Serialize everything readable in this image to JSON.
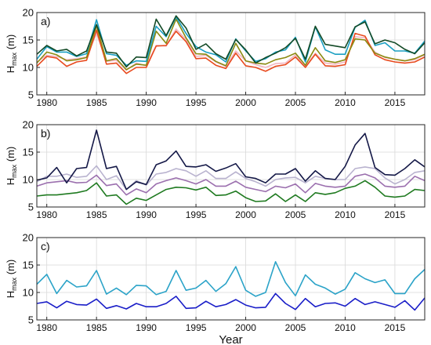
{
  "chart_data": [
    {
      "type": "line",
      "panel_label": "a)",
      "ylabel": "H",
      "ylabel_sub": "max",
      "ylabel_unit": " (m)",
      "xlabel": "",
      "xlim": [
        1979,
        2018
      ],
      "ylim": [
        5,
        20
      ],
      "yticks": [
        5,
        10,
        15,
        20
      ],
      "xticks": [
        1980,
        1985,
        1990,
        1995,
        2000,
        2005,
        2010,
        2015
      ],
      "grid": true,
      "x": [
        1979,
        1980,
        1981,
        1982,
        1983,
        1984,
        1985,
        1986,
        1987,
        1988,
        1989,
        1990,
        1991,
        1992,
        1993,
        1994,
        1995,
        1996,
        1997,
        1998,
        1999,
        2000,
        2001,
        2002,
        2003,
        2004,
        2005,
        2006,
        2007,
        2008,
        2009,
        2010,
        2011,
        2012,
        2013,
        2014,
        2015,
        2016,
        2017,
        2018
      ],
      "series": [
        {
          "color": "#f2b6c2",
          "values": [
            11.0,
            12.2,
            12.0,
            11.4,
            11.6,
            11.9,
            16.2,
            11.1,
            11.3,
            9.5,
            10.8,
            10.3,
            14.0,
            13.9,
            17.0,
            15.1,
            12.0,
            12.2,
            11.0,
            10.2,
            13.0,
            11.2,
            10.5,
            10.0,
            10.7,
            10.8,
            12.3,
            10.2,
            12.6,
            10.8,
            10.6,
            11.0,
            15.6,
            15.4,
            12.8,
            11.8,
            11.5,
            11.2,
            11.4,
            12.3
          ]
        },
        {
          "color": "#e84a1e",
          "values": [
            10.2,
            12.0,
            11.7,
            10.2,
            11.0,
            11.3,
            16.8,
            10.6,
            10.8,
            8.9,
            10.0,
            10.0,
            13.9,
            14.0,
            16.6,
            14.7,
            11.6,
            11.7,
            10.4,
            9.8,
            12.6,
            10.3,
            10.0,
            9.3,
            10.2,
            10.5,
            11.9,
            10.0,
            12.4,
            10.3,
            10.2,
            10.5,
            16.2,
            15.7,
            12.3,
            11.4,
            11.0,
            10.8,
            11.0,
            11.9
          ]
        },
        {
          "color": "#8a8a10",
          "values": [
            10.8,
            12.8,
            12.3,
            11.2,
            11.4,
            11.8,
            17.6,
            11.2,
            11.6,
            9.6,
            10.6,
            10.4,
            16.6,
            14.4,
            18.8,
            15.4,
            12.5,
            12.4,
            11.1,
            10.3,
            14.4,
            11.2,
            10.8,
            10.6,
            11.4,
            11.8,
            12.6,
            10.4,
            13.6,
            11.2,
            10.9,
            11.4,
            15.2,
            15.0,
            12.6,
            11.9,
            11.5,
            11.2,
            11.6,
            12.4
          ]
        },
        {
          "color": "#1a9fc2",
          "values": [
            11.5,
            13.8,
            12.8,
            12.8,
            12.0,
            12.5,
            18.7,
            12.5,
            12.2,
            10.4,
            11.2,
            11.1,
            17.5,
            15.6,
            19.2,
            16.2,
            13.8,
            12.8,
            12.3,
            11.0,
            15.2,
            13.0,
            11.1,
            11.6,
            12.8,
            13.2,
            15.5,
            11.0,
            17.4,
            13.2,
            12.4,
            12.4,
            17.3,
            18.6,
            14.0,
            14.5,
            13.0,
            13.0,
            12.6,
            14.8
          ]
        },
        {
          "color": "#134a26",
          "values": [
            12.4,
            14.0,
            13.0,
            13.3,
            12.1,
            13.0,
            17.8,
            12.8,
            12.6,
            10.1,
            11.9,
            11.8,
            18.8,
            15.8,
            19.4,
            17.2,
            13.3,
            14.3,
            12.5,
            11.5,
            15.1,
            13.2,
            10.8,
            11.8,
            12.6,
            13.6,
            15.3,
            11.5,
            17.5,
            14.2,
            13.9,
            13.6,
            17.4,
            18.3,
            14.3,
            15.0,
            14.5,
            13.3,
            12.5,
            14.5
          ]
        }
      ]
    },
    {
      "type": "line",
      "panel_label": "b)",
      "ylabel": "H",
      "ylabel_sub": "max",
      "ylabel_unit": " (m)",
      "xlabel": "",
      "xlim": [
        1979,
        2018
      ],
      "ylim": [
        5,
        20
      ],
      "yticks": [
        5,
        10,
        15,
        20
      ],
      "xticks": [
        1980,
        1985,
        1990,
        1995,
        2000,
        2005,
        2010,
        2015
      ],
      "grid": true,
      "x": [
        1979,
        1980,
        1981,
        1982,
        1983,
        1984,
        1985,
        1986,
        1987,
        1988,
        1989,
        1990,
        1991,
        1992,
        1993,
        1994,
        1995,
        1996,
        1997,
        1998,
        1999,
        2000,
        2001,
        2002,
        2003,
        2004,
        2005,
        2006,
        2007,
        2008,
        2009,
        2010,
        2011,
        2012,
        2013,
        2014,
        2015,
        2016,
        2017,
        2018
      ],
      "series": [
        {
          "color": "#b9b3cf",
          "values": [
            9.6,
            10.6,
            10.6,
            11.0,
            10.4,
            10.6,
            12.5,
            10.0,
            10.7,
            8.2,
            9.8,
            9.0,
            11.0,
            11.3,
            12.0,
            11.6,
            10.6,
            11.6,
            10.2,
            10.2,
            11.4,
            10.2,
            9.6,
            8.8,
            10.0,
            10.3,
            10.4,
            9.4,
            10.6,
            10.2,
            10.0,
            10.0,
            12.0,
            12.3,
            12.0,
            10.3,
            9.2,
            10.0,
            11.3,
            11.6
          ]
        },
        {
          "color": "#9b6fae",
          "values": [
            8.8,
            9.4,
            9.6,
            9.8,
            9.4,
            9.5,
            10.8,
            8.9,
            9.2,
            7.2,
            8.3,
            7.6,
            9.2,
            9.8,
            10.3,
            9.8,
            9.2,
            10.0,
            8.8,
            8.8,
            9.7,
            8.6,
            8.2,
            7.8,
            8.8,
            8.5,
            9.2,
            7.6,
            9.3,
            8.8,
            8.6,
            8.8,
            10.6,
            11.0,
            10.3,
            8.8,
            8.6,
            8.8,
            10.6,
            9.8
          ]
        },
        {
          "color": "#1f7a20",
          "values": [
            7.0,
            7.2,
            7.2,
            7.4,
            7.6,
            8.0,
            9.4,
            7.0,
            7.2,
            5.5,
            6.6,
            6.2,
            7.2,
            8.2,
            8.6,
            8.5,
            8.1,
            8.6,
            7.1,
            7.2,
            7.9,
            6.7,
            6.0,
            6.1,
            7.4,
            6.0,
            7.2,
            6.0,
            7.6,
            7.3,
            7.6,
            8.4,
            8.8,
            9.8,
            8.6,
            7.0,
            6.8,
            7.0,
            8.2,
            8.0
          ]
        },
        {
          "color": "#141847",
          "values": [
            9.9,
            10.3,
            12.2,
            9.4,
            12.0,
            12.2,
            19.0,
            12.0,
            12.4,
            8.2,
            9.6,
            9.1,
            12.7,
            13.4,
            15.2,
            12.4,
            12.3,
            12.7,
            11.5,
            12.1,
            12.9,
            10.5,
            10.2,
            9.4,
            11.0,
            11.0,
            12.0,
            9.7,
            11.6,
            10.2,
            10.0,
            12.4,
            16.3,
            18.4,
            12.2,
            10.9,
            10.8,
            12.0,
            13.6,
            12.3
          ]
        }
      ]
    },
    {
      "type": "line",
      "panel_label": "c)",
      "ylabel": "H",
      "ylabel_sub": "max",
      "ylabel_unit": " (m)",
      "xlabel": "Year",
      "xlim": [
        1979,
        2018
      ],
      "ylim": [
        5,
        20
      ],
      "yticks": [
        5,
        10,
        15,
        20
      ],
      "xticks": [
        1980,
        1985,
        1990,
        1995,
        2000,
        2005,
        2010,
        2015
      ],
      "grid": true,
      "x": [
        1979,
        1980,
        1981,
        1982,
        1983,
        1984,
        1985,
        1986,
        1987,
        1988,
        1989,
        1990,
        1991,
        1992,
        1993,
        1994,
        1995,
        1996,
        1997,
        1998,
        1999,
        2000,
        2001,
        2002,
        2003,
        2004,
        2005,
        2006,
        2007,
        2008,
        2009,
        2010,
        2011,
        2012,
        2013,
        2014,
        2015,
        2016,
        2017,
        2018
      ],
      "series": [
        {
          "color": "#2ba3c8",
          "values": [
            11.5,
            13.3,
            9.8,
            12.2,
            11.0,
            11.2,
            14.0,
            9.7,
            10.8,
            9.6,
            11.3,
            11.2,
            9.6,
            10.2,
            14.0,
            10.4,
            10.8,
            12.2,
            10.2,
            11.6,
            14.7,
            10.4,
            9.3,
            10.0,
            15.6,
            11.8,
            9.4,
            13.2,
            11.5,
            10.8,
            9.7,
            10.6,
            13.6,
            12.5,
            11.8,
            12.3,
            9.8,
            9.8,
            12.5,
            14.2
          ]
        },
        {
          "color": "#1a1ec8",
          "values": [
            8.0,
            8.3,
            7.2,
            8.4,
            7.8,
            7.7,
            8.8,
            7.1,
            7.6,
            7.0,
            8.0,
            7.4,
            7.4,
            8.0,
            9.3,
            7.1,
            7.2,
            8.4,
            7.4,
            7.8,
            8.7,
            7.7,
            7.2,
            7.3,
            9.8,
            8.0,
            6.9,
            8.9,
            7.4,
            8.0,
            8.1,
            7.5,
            8.9,
            7.8,
            8.3,
            7.8,
            7.3,
            8.5,
            6.8,
            9.0
          ]
        }
      ]
    }
  ]
}
